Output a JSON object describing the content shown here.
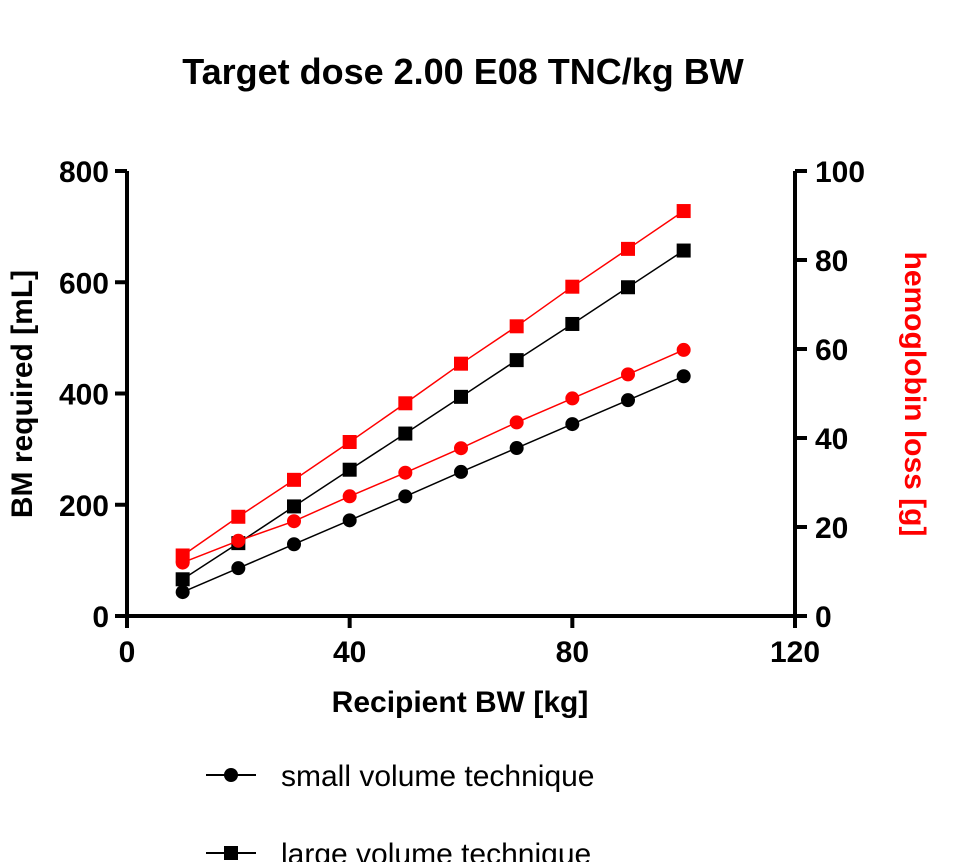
{
  "chart_data": {
    "type": "line",
    "title": "Target dose 2.00 E08 TNC/kg BW",
    "xlabel": "Recipient BW [kg]",
    "ylabel": "BM required [mL]",
    "y2label": "hemoglobin loss [g]",
    "xlim": [
      0,
      120
    ],
    "ylim": [
      0,
      800
    ],
    "y2lim": [
      0,
      100
    ],
    "x_ticks": [
      "0",
      "40",
      "80",
      "120"
    ],
    "y_ticks": [
      "0",
      "200",
      "400",
      "600",
      "800"
    ],
    "y2_ticks": [
      "0",
      "20",
      "40",
      "60",
      "80",
      "100"
    ],
    "x": [
      10,
      20,
      30,
      40,
      50,
      60,
      70,
      80,
      90,
      100
    ],
    "series": [
      {
        "name": "small volume technique",
        "axis": "left",
        "marker": "circle",
        "color": "#000000",
        "values": [
          43,
          86,
          129,
          172,
          215,
          259,
          302,
          345,
          388,
          431
        ]
      },
      {
        "name": "large volume technique",
        "axis": "left",
        "marker": "square",
        "color": "#000000",
        "values": [
          66,
          131,
          197,
          263,
          328,
          394,
          460,
          525,
          591,
          657
        ]
      },
      {
        "axis": "right",
        "marker": "circle",
        "color": "#ff0000",
        "values": [
          12,
          16.9,
          21.3,
          26.9,
          32.2,
          37.7,
          43.5,
          48.9,
          54.3,
          59.8
        ]
      },
      {
        "axis": "right",
        "marker": "square",
        "color": "#ff0000",
        "values": [
          13.6,
          22.3,
          30.6,
          39.1,
          47.8,
          56.7,
          65.1,
          74.0,
          82.5,
          91.0
        ]
      }
    ],
    "grid": false,
    "legend_position": "bottom"
  },
  "colors": {
    "primary": "#000000",
    "secondary_axis": "#ff0000"
  }
}
